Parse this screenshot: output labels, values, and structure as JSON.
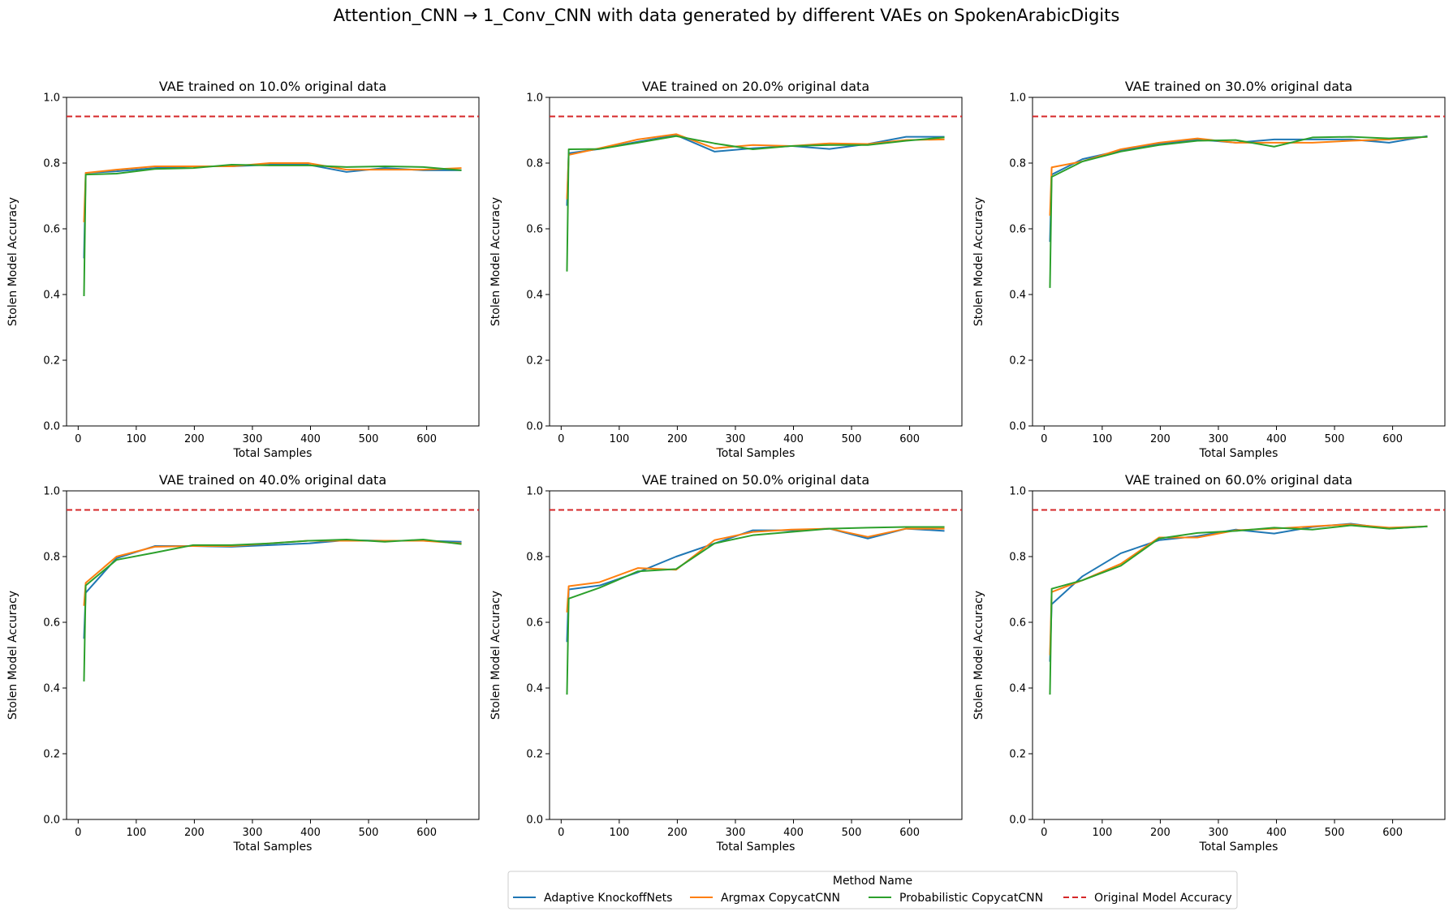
{
  "figure": {
    "title": "Attention_CNN → 1_Conv_CNN with data generated by different VAEs on SpokenArabicDigits"
  },
  "legend": {
    "title": "Method Name",
    "placement": "bottom-center"
  },
  "colors": {
    "Adaptive KnockoffNets": "#1f77b4",
    "Argmax CopycatCNN": "#ff7f0e",
    "Probabilistic CopycatCNN": "#2ca02c",
    "Original Model Accuracy": "#d62728"
  },
  "chart_data": [
    {
      "type": "line",
      "title": "VAE trained on 10.0% original data",
      "xlabel": "Total Samples",
      "ylabel": "Stolen Model Accuracy",
      "xlim": [
        -20,
        690
      ],
      "ylim": [
        0,
        1
      ],
      "xticks": [
        0,
        100,
        200,
        300,
        400,
        500,
        600
      ],
      "yticks": [
        0.0,
        0.2,
        0.4,
        0.6,
        0.8,
        1.0
      ],
      "grid": false,
      "x": [
        10,
        13,
        66,
        132,
        198,
        264,
        330,
        396,
        462,
        528,
        594,
        660
      ],
      "series": [
        {
          "name": "Adaptive KnockoffNets",
          "values": [
            0.51,
            0.77,
            0.775,
            0.785,
            0.79,
            0.79,
            0.795,
            0.795,
            0.773,
            0.785,
            0.778,
            0.778
          ]
        },
        {
          "name": "Argmax CopycatCNN",
          "values": [
            0.62,
            0.77,
            0.78,
            0.79,
            0.79,
            0.79,
            0.8,
            0.8,
            0.78,
            0.78,
            0.78,
            0.785
          ]
        },
        {
          "name": "Probabilistic CopycatCNN",
          "values": [
            0.395,
            0.765,
            0.768,
            0.782,
            0.785,
            0.795,
            0.793,
            0.793,
            0.788,
            0.79,
            0.788,
            0.778
          ]
        }
      ],
      "reference": {
        "name": "Original Model Accuracy",
        "value": 0.942
      }
    },
    {
      "type": "line",
      "title": "VAE trained on 20.0% original data",
      "xlabel": "Total Samples",
      "ylabel": "Stolen Model Accuracy",
      "xlim": [
        -20,
        690
      ],
      "ylim": [
        0,
        1
      ],
      "xticks": [
        0,
        100,
        200,
        300,
        400,
        500,
        600
      ],
      "yticks": [
        0.0,
        0.2,
        0.4,
        0.6,
        0.8,
        1.0
      ],
      "grid": false,
      "x": [
        10,
        13,
        66,
        132,
        198,
        264,
        330,
        396,
        462,
        528,
        594,
        660
      ],
      "series": [
        {
          "name": "Adaptive KnockoffNets",
          "values": [
            0.67,
            0.83,
            0.843,
            0.865,
            0.885,
            0.835,
            0.845,
            0.852,
            0.843,
            0.858,
            0.88,
            0.88
          ]
        },
        {
          "name": "Argmax CopycatCNN",
          "values": [
            0.69,
            0.825,
            0.845,
            0.872,
            0.888,
            0.845,
            0.855,
            0.852,
            0.86,
            0.858,
            0.87,
            0.872
          ]
        },
        {
          "name": "Probabilistic CopycatCNN",
          "values": [
            0.47,
            0.842,
            0.843,
            0.862,
            0.882,
            0.86,
            0.842,
            0.852,
            0.855,
            0.855,
            0.868,
            0.878
          ]
        }
      ],
      "reference": {
        "name": "Original Model Accuracy",
        "value": 0.942
      }
    },
    {
      "type": "line",
      "title": "VAE trained on 30.0% original data",
      "xlabel": "Total Samples",
      "ylabel": "Stolen Model Accuracy",
      "xlim": [
        -20,
        690
      ],
      "ylim": [
        0,
        1
      ],
      "xticks": [
        0,
        100,
        200,
        300,
        400,
        500,
        600
      ],
      "yticks": [
        0.0,
        0.2,
        0.4,
        0.6,
        0.8,
        1.0
      ],
      "grid": false,
      "x": [
        10,
        13,
        66,
        132,
        198,
        264,
        330,
        396,
        462,
        528,
        594,
        660
      ],
      "series": [
        {
          "name": "Adaptive KnockoffNets",
          "values": [
            0.56,
            0.765,
            0.812,
            0.838,
            0.858,
            0.872,
            0.862,
            0.872,
            0.872,
            0.872,
            0.862,
            0.882
          ]
        },
        {
          "name": "Argmax CopycatCNN",
          "values": [
            0.64,
            0.787,
            0.805,
            0.842,
            0.862,
            0.875,
            0.862,
            0.862,
            0.862,
            0.868,
            0.872,
            0.88
          ]
        },
        {
          "name": "Probabilistic CopycatCNN",
          "values": [
            0.42,
            0.758,
            0.805,
            0.835,
            0.855,
            0.868,
            0.87,
            0.85,
            0.878,
            0.88,
            0.875,
            0.88
          ]
        }
      ],
      "reference": {
        "name": "Original Model Accuracy",
        "value": 0.942
      }
    },
    {
      "type": "line",
      "title": "VAE trained on 40.0% original data",
      "xlabel": "Total Samples",
      "ylabel": "Stolen Model Accuracy",
      "xlim": [
        -20,
        690
      ],
      "ylim": [
        0,
        1
      ],
      "xticks": [
        0,
        100,
        200,
        300,
        400,
        500,
        600
      ],
      "yticks": [
        0.0,
        0.2,
        0.4,
        0.6,
        0.8,
        1.0
      ],
      "grid": false,
      "x": [
        10,
        13,
        66,
        132,
        198,
        264,
        330,
        396,
        462,
        528,
        594,
        660
      ],
      "series": [
        {
          "name": "Adaptive KnockoffNets",
          "values": [
            0.55,
            0.69,
            0.795,
            0.832,
            0.832,
            0.83,
            0.835,
            0.84,
            0.85,
            0.848,
            0.848,
            0.845
          ]
        },
        {
          "name": "Argmax CopycatCNN",
          "values": [
            0.65,
            0.72,
            0.8,
            0.83,
            0.832,
            0.832,
            0.84,
            0.848,
            0.848,
            0.848,
            0.848,
            0.84
          ]
        },
        {
          "name": "Probabilistic CopycatCNN",
          "values": [
            0.42,
            0.712,
            0.79,
            0.812,
            0.835,
            0.835,
            0.84,
            0.848,
            0.852,
            0.845,
            0.852,
            0.838
          ]
        }
      ],
      "reference": {
        "name": "Original Model Accuracy",
        "value": 0.942
      }
    },
    {
      "type": "line",
      "title": "VAE trained on 50.0% original data",
      "xlabel": "Total Samples",
      "ylabel": "Stolen Model Accuracy",
      "xlim": [
        -20,
        690
      ],
      "ylim": [
        0,
        1
      ],
      "xticks": [
        0,
        100,
        200,
        300,
        400,
        500,
        600
      ],
      "yticks": [
        0.0,
        0.2,
        0.4,
        0.6,
        0.8,
        1.0
      ],
      "grid": false,
      "x": [
        10,
        13,
        66,
        132,
        198,
        264,
        330,
        396,
        462,
        528,
        594,
        660
      ],
      "series": [
        {
          "name": "Adaptive KnockoffNets",
          "values": [
            0.54,
            0.7,
            0.712,
            0.752,
            0.8,
            0.84,
            0.88,
            0.88,
            0.885,
            0.855,
            0.885,
            0.878
          ]
        },
        {
          "name": "Argmax CopycatCNN",
          "values": [
            0.63,
            0.71,
            0.722,
            0.765,
            0.76,
            0.85,
            0.875,
            0.882,
            0.885,
            0.86,
            0.885,
            0.885
          ]
        },
        {
          "name": "Probabilistic CopycatCNN",
          "values": [
            0.38,
            0.672,
            0.705,
            0.755,
            0.762,
            0.84,
            0.865,
            0.875,
            0.885,
            0.888,
            0.89,
            0.89
          ]
        }
      ],
      "reference": {
        "name": "Original Model Accuracy",
        "value": 0.942
      }
    },
    {
      "type": "line",
      "title": "VAE trained on 60.0% original data",
      "xlabel": "Total Samples",
      "ylabel": "Stolen Model Accuracy",
      "xlim": [
        -20,
        690
      ],
      "ylim": [
        0,
        1
      ],
      "xticks": [
        0,
        100,
        200,
        300,
        400,
        500,
        600
      ],
      "yticks": [
        0.0,
        0.2,
        0.4,
        0.6,
        0.8,
        1.0
      ],
      "grid": false,
      "x": [
        10,
        13,
        66,
        132,
        198,
        264,
        330,
        396,
        462,
        528,
        594,
        660
      ],
      "series": [
        {
          "name": "Adaptive KnockoffNets",
          "values": [
            0.48,
            0.655,
            0.74,
            0.81,
            0.85,
            0.862,
            0.882,
            0.87,
            0.89,
            0.9,
            0.885,
            0.892
          ]
        },
        {
          "name": "Argmax CopycatCNN",
          "values": [
            0.5,
            0.692,
            0.728,
            0.778,
            0.858,
            0.858,
            0.88,
            0.885,
            0.892,
            0.898,
            0.888,
            0.892
          ]
        },
        {
          "name": "Probabilistic CopycatCNN",
          "values": [
            0.38,
            0.702,
            0.728,
            0.772,
            0.855,
            0.872,
            0.878,
            0.888,
            0.882,
            0.895,
            0.885,
            0.892
          ]
        }
      ],
      "reference": {
        "name": "Original Model Accuracy",
        "value": 0.942
      }
    }
  ]
}
